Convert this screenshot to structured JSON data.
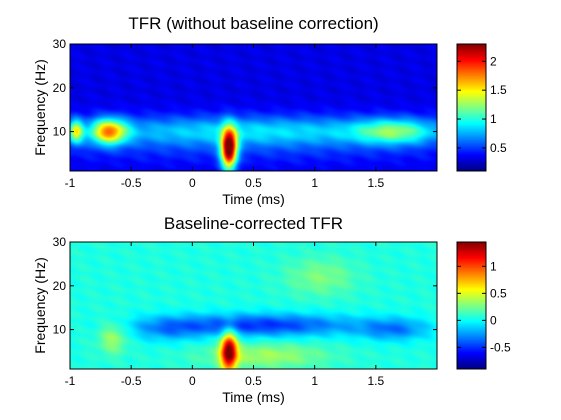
{
  "chart_data": [
    {
      "type": "heatmap",
      "title": "TFR (without baseline correction)",
      "xlabel": "Time (ms)",
      "ylabel": "Frequency (Hz)",
      "xlim": [
        -1,
        2
      ],
      "ylim": [
        1,
        30
      ],
      "xticks": [
        -1,
        -0.5,
        0,
        0.5,
        1,
        1.5
      ],
      "xtick_labels": [
        "-1",
        "-0.5",
        "0",
        "0.5",
        "1",
        "1.5"
      ],
      "yticks": [
        10,
        20,
        30
      ],
      "ytick_labels": [
        "10",
        "20",
        "30"
      ],
      "colormap": "jet",
      "clim": [
        0.1,
        2.3
      ],
      "colorbar_ticks": [
        0.5,
        1,
        1.5,
        2
      ],
      "colorbar_tick_labels": [
        "0.5",
        "1",
        "1.5",
        "2"
      ],
      "base_level": 0.32,
      "blobs": [
        {
          "t": 0.3,
          "f": 6,
          "st": 0.045,
          "sf": 3.2,
          "amp": 2.0
        },
        {
          "t": -0.68,
          "f": 10,
          "st": 0.1,
          "sf": 2.0,
          "amp": 1.15
        },
        {
          "t": -0.95,
          "f": 10,
          "st": 0.04,
          "sf": 1.8,
          "amp": 0.9
        },
        {
          "t": 1.65,
          "f": 10,
          "st": 0.22,
          "sf": 2.0,
          "amp": 0.6
        },
        {
          "t": 0.5,
          "f": 10,
          "st": 1.2,
          "sf": 2.5,
          "amp": 0.55
        },
        {
          "t": 0.5,
          "f": 5,
          "st": 1.5,
          "sf": 2.5,
          "amp": 0.1
        }
      ]
    },
    {
      "type": "heatmap",
      "title": "Baseline-corrected TFR",
      "xlabel": "Time (ms)",
      "ylabel": "Frequency (Hz)",
      "xlim": [
        -1,
        2
      ],
      "ylim": [
        1,
        30
      ],
      "xticks": [
        -1,
        -0.5,
        0,
        0.5,
        1,
        1.5
      ],
      "xtick_labels": [
        "-1",
        "-0.5",
        "0",
        "0.5",
        "1",
        "1.5"
      ],
      "yticks": [
        10,
        20,
        30
      ],
      "ytick_labels": [
        "10",
        "20",
        "30"
      ],
      "colormap": "jet",
      "clim": [
        -0.9,
        1.45
      ],
      "colorbar_ticks": [
        -0.5,
        0,
        0.5,
        1
      ],
      "colorbar_tick_labels": [
        "-0.5",
        "0",
        "0.5",
        "1"
      ],
      "base_level": 0.05,
      "blobs": [
        {
          "t": 0.3,
          "f": 5,
          "st": 0.045,
          "sf": 3.0,
          "amp": 1.4
        },
        {
          "t": 0.55,
          "f": 11,
          "st": 0.55,
          "sf": 1.8,
          "amp": -0.55
        },
        {
          "t": 1.65,
          "f": 10,
          "st": 0.2,
          "sf": 1.8,
          "amp": -0.35
        },
        {
          "t": -0.65,
          "f": 8,
          "st": 0.08,
          "sf": 2.5,
          "amp": 0.3
        },
        {
          "t": 1.05,
          "f": 22,
          "st": 0.2,
          "sf": 3.0,
          "amp": 0.22
        },
        {
          "t": 0.6,
          "f": 4,
          "st": 0.35,
          "sf": 2.0,
          "amp": 0.3
        },
        {
          "t": -0.2,
          "f": 10,
          "st": 0.2,
          "sf": 2.0,
          "amp": -0.25
        }
      ]
    }
  ]
}
